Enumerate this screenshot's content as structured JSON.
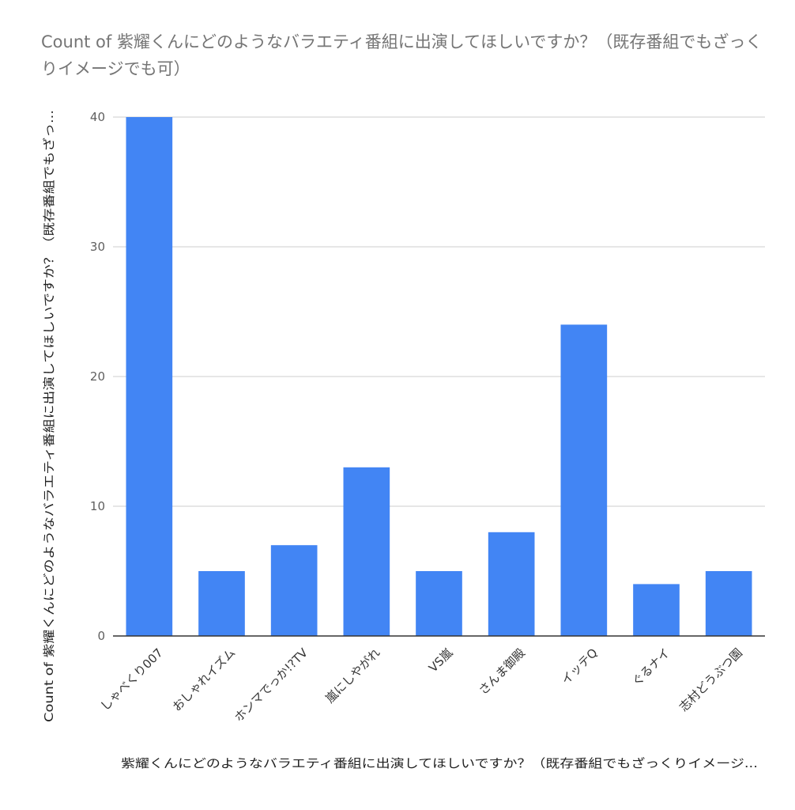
{
  "chart_data": {
    "type": "bar",
    "title": "Count of 紫耀くんにどのようなバラエティ番組に出演してほしいですか？（既存番組でもざっくりイメージでも可）",
    "xlabel": "紫耀くんにどのようなバラエティ番組に出演してほしいですか？（既存番組でもざっくりイメージ...",
    "ylabel": "Count of 紫耀くんにどのようなバラエティ番組に出演してほしいですか？（既存番組でもざっ...",
    "categories": [
      "しゃべくり007",
      "おしゃれイズム",
      "ホンマでっか!?TV",
      "嵐にしやがれ",
      "VS嵐",
      "さんま御殿",
      "イッテQ",
      "ぐるナイ",
      "志村どうぶつ園"
    ],
    "values": [
      40,
      5,
      7,
      13,
      5,
      8,
      24,
      4,
      5
    ],
    "ylim": [
      0,
      40
    ],
    "yticks": [
      "0",
      "10",
      "20",
      "30",
      "40"
    ],
    "grid": true,
    "legend": "none",
    "bar_color": "#4285f4",
    "grid_color": "#cccccc",
    "axis_color": "#333333"
  }
}
